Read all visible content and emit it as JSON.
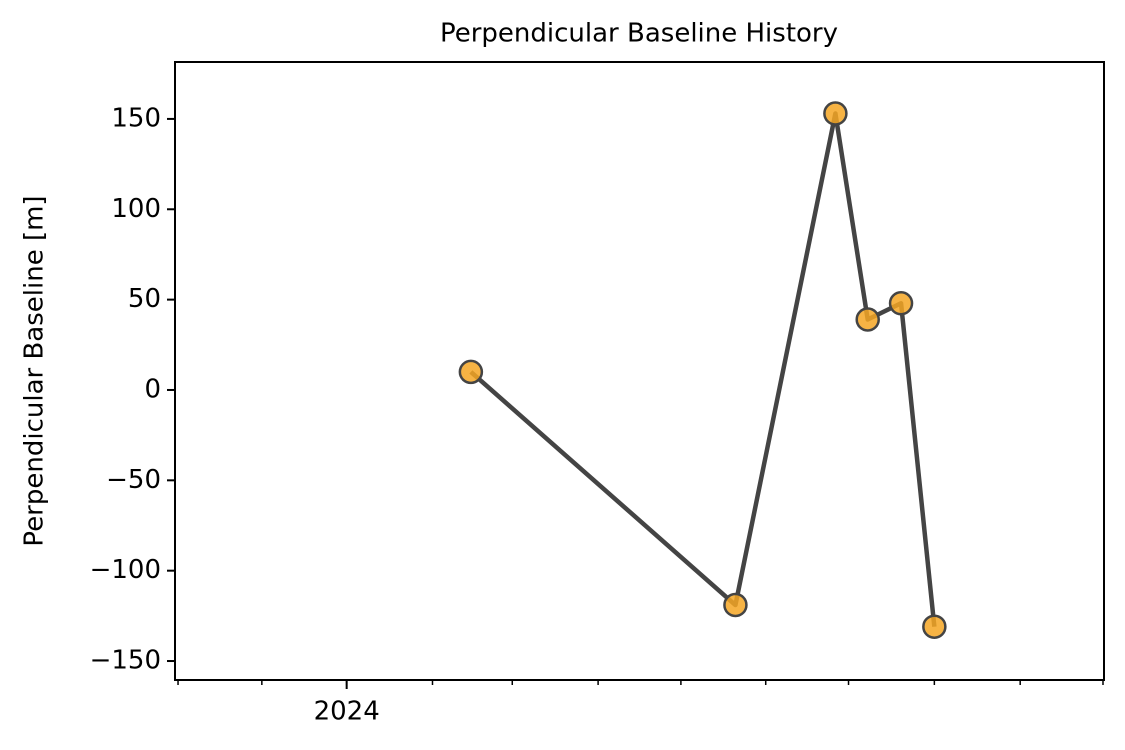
{
  "chart_data": {
    "type": "line",
    "title": "Perpendicular Baseline History",
    "y_label": "Perpendicular Baseline [m]",
    "x": [
      2024.123,
      2024.385,
      2024.484,
      2024.516,
      2024.549,
      2024.582
    ],
    "values": [
      10,
      -119,
      153,
      39,
      48,
      -131
    ],
    "line_color": "#444444",
    "marker_color": "#f5a623",
    "marker_edge_color": "#444444",
    "xlim": [
      2023.83,
      2024.75
    ],
    "xticks": [
      {
        "value": 2024,
        "label": "2024"
      }
    ],
    "xminorticks": [
      2023.833,
      2023.916,
      2024.0,
      2024.085,
      2024.164,
      2024.249,
      2024.331,
      2024.415,
      2024.497,
      2024.582,
      2024.667,
      2024.749
    ],
    "ylim": [
      -160.5,
      181.5
    ],
    "yticks": [
      {
        "value": -150,
        "label": "−150"
      },
      {
        "value": -100,
        "label": "−100"
      },
      {
        "value": -50,
        "label": "−50"
      },
      0,
      50,
      100,
      150
    ],
    "grid": false
  }
}
